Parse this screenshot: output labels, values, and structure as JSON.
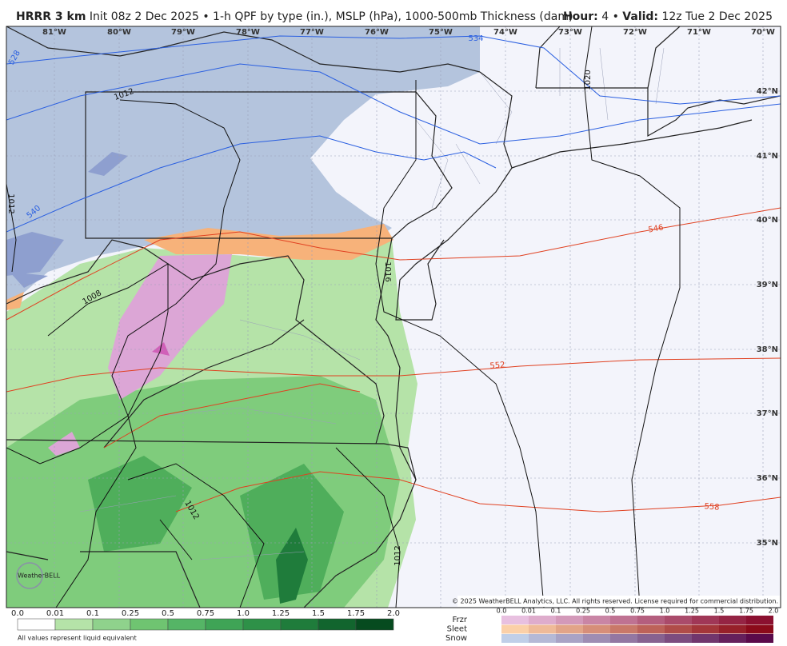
{
  "header": {
    "model": "HRRR 3 km",
    "description": "Init 08z 2 Dec 2025 • 1-h QPF by type (in.), MSLP (hPa), 1000-500mb Thickness (dam)",
    "hour_label": "Hour:",
    "hour": "4",
    "separator": "•",
    "valid_label": "Valid:",
    "valid": "12z Tue 2 Dec 2025"
  },
  "map": {
    "longitude_labels": [
      "81°W",
      "80°W",
      "79°W",
      "78°W",
      "77°W",
      "76°W",
      "75°W",
      "74°W",
      "73°W",
      "72°W",
      "71°W",
      "70°W"
    ],
    "latitude_labels": [
      "42°N",
      "41°N",
      "40°N",
      "39°N",
      "38°N",
      "37°N",
      "36°N",
      "35°N"
    ],
    "contour_labels": [
      "534",
      "528",
      "1012",
      "540",
      "1012",
      "1020",
      "546",
      "1008",
      "1016",
      "552",
      "558",
      "1012",
      "1012"
    ],
    "copyright": "© 2025 WeatherBELL Analytics, LLC. All rights reserved. License required for commercial distribution.",
    "logo": "WeatherBELL"
  },
  "legend": {
    "rain_scale": [
      "0.0",
      "0.01",
      "0.1",
      "0.25",
      "0.5",
      "0.75",
      "1.0",
      "1.25",
      "1.5",
      "1.75",
      "2.0"
    ],
    "note": "All values represent liquid equivalent",
    "types": [
      "Frzr",
      "Sleet",
      "Snow"
    ],
    "type_scale": [
      "0.0",
      "0.01",
      "0.1",
      "0.25",
      "0.5",
      "0.75",
      "1.0",
      "1.25",
      "1.5",
      "1.75",
      "2.0"
    ]
  }
}
